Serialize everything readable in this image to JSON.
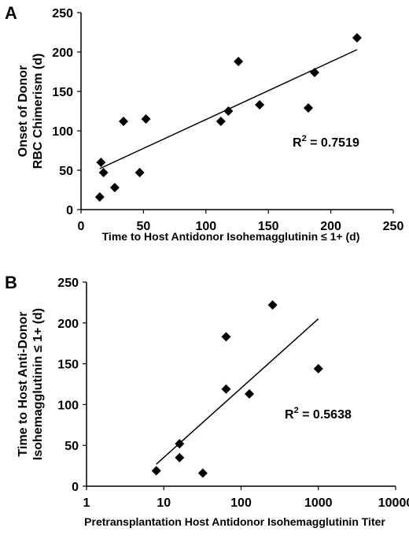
{
  "chart_data": [
    {
      "panel_label": "A",
      "type": "scatter",
      "xlabel": "Time to Host Antidonor Isohemagglutinin ≤ 1+ (d)",
      "ylabel_lines": [
        "Onset of Donor",
        "RBC Chimerism (d)"
      ],
      "xlim": [
        0,
        250
      ],
      "ylim": [
        0,
        250
      ],
      "xticks": [
        0,
        50,
        100,
        150,
        200,
        250
      ],
      "yticks": [
        0,
        50,
        100,
        150,
        200,
        250
      ],
      "xscale": "linear",
      "points": [
        {
          "x": 15,
          "y": 16
        },
        {
          "x": 16,
          "y": 60
        },
        {
          "x": 18,
          "y": 47
        },
        {
          "x": 27,
          "y": 28
        },
        {
          "x": 34,
          "y": 112
        },
        {
          "x": 47,
          "y": 47
        },
        {
          "x": 52,
          "y": 115
        },
        {
          "x": 112,
          "y": 112
        },
        {
          "x": 118,
          "y": 125
        },
        {
          "x": 126,
          "y": 188
        },
        {
          "x": 143,
          "y": 133
        },
        {
          "x": 182,
          "y": 129
        },
        {
          "x": 187,
          "y": 174
        },
        {
          "x": 221,
          "y": 218
        }
      ],
      "trendline": {
        "x": [
          15,
          221
        ],
        "y": [
          52,
          203
        ]
      },
      "r2_prefix": "R",
      "r2_exp": "2",
      "r2_value": " = 0.7519",
      "grid": false
    },
    {
      "panel_label": "B",
      "type": "scatter",
      "xlabel": "Pretransplantation Host Antidonor Isohemagglutinin Titer",
      "ylabel_lines": [
        "Time to Host Anti-Donor",
        "Isohemagglutinin ≤ 1+ (d)"
      ],
      "xlim": [
        1,
        10000
      ],
      "ylim": [
        0,
        250
      ],
      "xticks": [
        1,
        10,
        100,
        1000,
        10000
      ],
      "yticks": [
        0,
        50,
        100,
        150,
        200,
        250
      ],
      "xscale": "log",
      "points": [
        {
          "x": 8,
          "y": 19
        },
        {
          "x": 16,
          "y": 52
        },
        {
          "x": 16,
          "y": 35
        },
        {
          "x": 32,
          "y": 16
        },
        {
          "x": 64,
          "y": 183
        },
        {
          "x": 64,
          "y": 119
        },
        {
          "x": 128,
          "y": 113
        },
        {
          "x": 256,
          "y": 222
        },
        {
          "x": 1000,
          "y": 144
        }
      ],
      "trendline": {
        "x": [
          8,
          1000
        ],
        "y": [
          27,
          205
        ]
      },
      "r2_prefix": "R",
      "r2_exp": "2",
      "r2_value": " = 0.5638",
      "grid": false
    }
  ]
}
